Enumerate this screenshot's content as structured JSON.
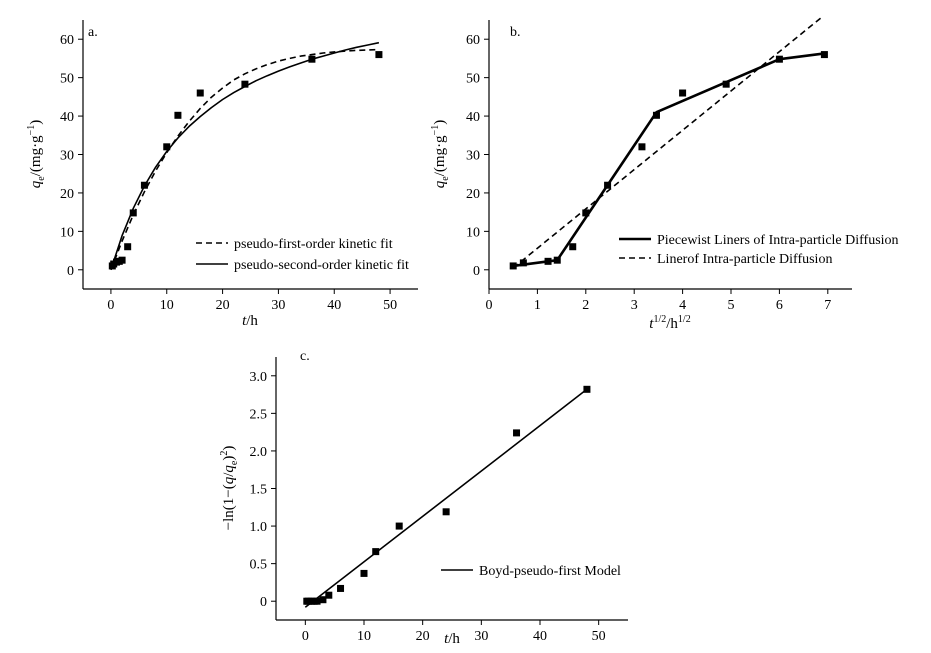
{
  "chart_data": [
    {
      "type": "scatter",
      "panel_label": "a.",
      "xlabel": "t/h",
      "ylabel": "q_e/(mg·g^-1)",
      "xlim": [
        -5,
        55
      ],
      "ylim": [
        -5,
        65
      ],
      "xticks": [
        0,
        10,
        20,
        30,
        40,
        50
      ],
      "yticks": [
        0,
        10,
        20,
        30,
        40,
        50,
        60
      ],
      "legend_position": "bottom-right",
      "series": [
        {
          "name": "",
          "kind": "points",
          "x": [
            0.25,
            0.5,
            1,
            1.5,
            2,
            3,
            4,
            6,
            10,
            12,
            16,
            24,
            36,
            48
          ],
          "y": [
            1.0,
            1.5,
            2.0,
            2.2,
            2.5,
            6.0,
            14.8,
            22.0,
            32.0,
            40.2,
            46.0,
            48.3,
            54.8,
            56.0
          ]
        },
        {
          "name": "pseudo-first-order kinetic fit",
          "kind": "line",
          "style": "dashed",
          "x": [
            0,
            2,
            4,
            6,
            8,
            10,
            12,
            14,
            16,
            18,
            20,
            22,
            24,
            26,
            28,
            30,
            32,
            34,
            36,
            38,
            40,
            42,
            44,
            46,
            48
          ],
          "y": [
            0.0,
            7.5,
            14.3,
            20.3,
            25.7,
            30.5,
            34.8,
            38.6,
            42.0,
            44.9,
            47.3,
            49.4,
            51.0,
            52.3,
            53.4,
            54.3,
            55.0,
            55.6,
            56.0,
            56.4,
            56.7,
            56.9,
            57.1,
            57.2,
            57.3
          ]
        },
        {
          "name": "pseudo-second-order kinetic fit",
          "kind": "line",
          "style": "solid",
          "x": [
            0,
            2,
            4,
            6,
            8,
            10,
            12,
            14,
            16,
            18,
            20,
            22,
            24,
            26,
            28,
            30,
            32,
            34,
            36,
            38,
            40,
            42,
            44,
            46,
            48
          ],
          "y": [
            0.0,
            8.9,
            16.0,
            21.8,
            26.7,
            30.8,
            34.3,
            37.3,
            39.9,
            42.2,
            44.3,
            46.1,
            47.7,
            49.2,
            50.5,
            51.7,
            52.8,
            53.8,
            54.8,
            55.6,
            56.4,
            57.2,
            57.9,
            58.5,
            59.1
          ]
        }
      ]
    },
    {
      "type": "scatter",
      "panel_label": "b.",
      "xlabel": "t^1/2/h^1/2",
      "ylabel": "q_e/(mg·g^-1)",
      "xlim": [
        0,
        7.5
      ],
      "ylim": [
        -5,
        65
      ],
      "xticks": [
        0,
        1,
        2,
        3,
        4,
        5,
        6,
        7
      ],
      "yticks": [
        0,
        10,
        20,
        30,
        40,
        50,
        60
      ],
      "legend_position": "bottom-right",
      "series": [
        {
          "name": "",
          "kind": "points",
          "x": [
            0.5,
            0.71,
            1.22,
            1.41,
            1.73,
            2.0,
            2.45,
            3.16,
            3.46,
            4.0,
            4.9,
            6.0,
            6.93
          ],
          "y": [
            1.0,
            1.8,
            2.2,
            2.5,
            6.0,
            14.8,
            22.0,
            32.0,
            40.2,
            46.0,
            48.3,
            54.8,
            56.0
          ]
        },
        {
          "name": "Piecewist Liners of Intra-particle Diffusion",
          "kind": "line",
          "style": "solid-thick",
          "x": [
            0.5,
            1.41,
            3.46,
            6.0,
            6.93
          ],
          "y": [
            1.0,
            2.5,
            41.0,
            54.8,
            56.3
          ]
        },
        {
          "name": "Linerof Intra-particle Diffusion",
          "kind": "line",
          "style": "dashed",
          "x": [
            0.5,
            6.9
          ],
          "y": [
            0.5,
            66.0
          ]
        }
      ]
    },
    {
      "type": "scatter",
      "panel_label": "c.",
      "xlabel": "t/h",
      "ylabel": "-ln(1-(q/q_e)^2)",
      "xlim": [
        -5,
        55
      ],
      "ylim": [
        -0.25,
        3.25
      ],
      "xticks": [
        0,
        10,
        20,
        30,
        40,
        50
      ],
      "yticks": [
        0,
        0.5,
        1.0,
        1.5,
        2.0,
        2.5,
        3.0
      ],
      "ytick_labels": [
        "0",
        "0.5",
        "1.0",
        "1.5",
        "2.0",
        "2.5",
        "3.0"
      ],
      "legend_position": "bottom-right",
      "series": [
        {
          "name": "",
          "kind": "points",
          "x": [
            0.25,
            0.5,
            1,
            1.5,
            2,
            3,
            4,
            6,
            10,
            12,
            16,
            24,
            36,
            48
          ],
          "y": [
            0.0,
            0.0,
            0.0,
            0.0,
            0.0,
            0.02,
            0.08,
            0.17,
            0.37,
            0.66,
            1.0,
            1.19,
            2.24,
            2.82
          ]
        },
        {
          "name": "Boyd-pseudo-first Model",
          "kind": "line",
          "style": "solid",
          "x": [
            0,
            48
          ],
          "y": [
            -0.08,
            2.82
          ]
        }
      ]
    }
  ]
}
